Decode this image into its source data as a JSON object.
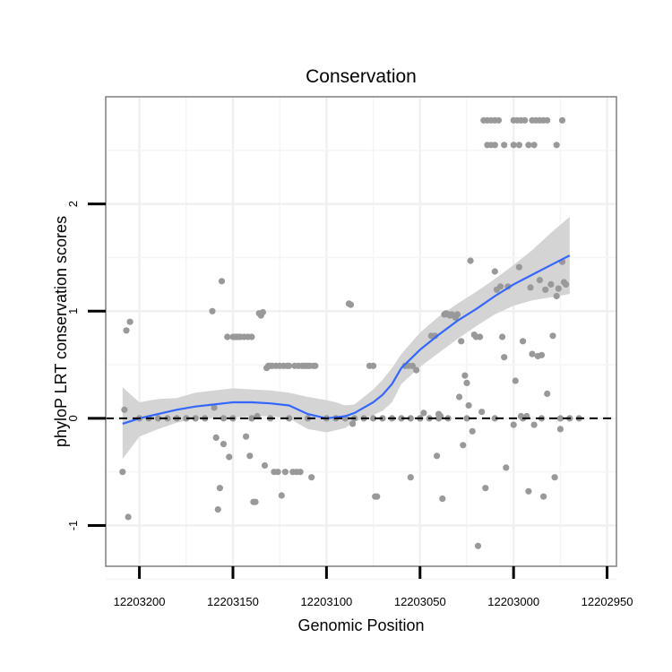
{
  "chart_data": {
    "type": "scatter",
    "title": "Conservation",
    "xlabel": "Genomic Position",
    "ylabel": "phyloP LRT conservation scores",
    "x_reversed": true,
    "xlim": [
      12203218,
      12202945
    ],
    "ylim": [
      -1.38,
      3.0
    ],
    "x_ticks": [
      {
        "value": 12203200,
        "label": "12203200"
      },
      {
        "value": 12203150,
        "label": "12203150"
      },
      {
        "value": 12203100,
        "label": "12203100"
      },
      {
        "value": 12203050,
        "label": "12203050"
      },
      {
        "value": 12203000,
        "label": "12203000"
      },
      {
        "value": 12202950,
        "label": "12202950"
      }
    ],
    "y_ticks": [
      {
        "value": -1,
        "label": "-1"
      },
      {
        "value": 0,
        "label": "0"
      },
      {
        "value": 1,
        "label": "1"
      },
      {
        "value": 2,
        "label": "2"
      }
    ],
    "reference_line": {
      "y": 0,
      "style": "dashed"
    },
    "point_color": "#999999",
    "smooth_color": "#3366ff",
    "band_color": "#d4d4d4",
    "points": [
      [
        12203209,
        -0.5
      ],
      [
        12203208,
        0.08
      ],
      [
        12203207,
        0.82
      ],
      [
        12203206,
        -0.92
      ],
      [
        12203205,
        0.9
      ],
      [
        12203200,
        0.0
      ],
      [
        12203195,
        0.0
      ],
      [
        12203190,
        0.0
      ],
      [
        12203185,
        0.0
      ],
      [
        12203180,
        0.0
      ],
      [
        12203175,
        0.0
      ],
      [
        12203170,
        0.0
      ],
      [
        12203165,
        0.0
      ],
      [
        12203155,
        0.0
      ],
      [
        12203150,
        0.0
      ],
      [
        12203140,
        0.0
      ],
      [
        12203130,
        0.0
      ],
      [
        12203120,
        0.0
      ],
      [
        12203110,
        0.0
      ],
      [
        12203100,
        0.0
      ],
      [
        12203095,
        0.0
      ],
      [
        12203090,
        0.0
      ],
      [
        12203085,
        0.0
      ],
      [
        12203080,
        0.0
      ],
      [
        12203075,
        0.0
      ],
      [
        12203070,
        0.0
      ],
      [
        12203065,
        0.0
      ],
      [
        12203060,
        0.0
      ],
      [
        12203055,
        0.0
      ],
      [
        12203050,
        0.0
      ],
      [
        12203045,
        0.0
      ],
      [
        12203040,
        0.0
      ],
      [
        12203035,
        0.0
      ],
      [
        12203025,
        0.0
      ],
      [
        12203010,
        0.0
      ],
      [
        12202995,
        0.0
      ],
      [
        12202985,
        0.0
      ],
      [
        12202975,
        0.0
      ],
      [
        12202970,
        0.0
      ],
      [
        12202965,
        0.0
      ],
      [
        12203161,
        1.0
      ],
      [
        12203160,
        0.1
      ],
      [
        12203159,
        -0.18
      ],
      [
        12203158,
        -0.85
      ],
      [
        12203157,
        -0.65
      ],
      [
        12203156,
        1.28
      ],
      [
        12203155,
        -0.24
      ],
      [
        12203153,
        0.76
      ],
      [
        12203152,
        -0.36
      ],
      [
        12203150,
        0.76
      ],
      [
        12203149,
        0.76
      ],
      [
        12203148,
        0.76
      ],
      [
        12203147,
        0.76
      ],
      [
        12203146,
        0.76
      ],
      [
        12203144,
        0.76
      ],
      [
        12203143,
        -0.17
      ],
      [
        12203142,
        0.76
      ],
      [
        12203141,
        -0.35
      ],
      [
        12203140,
        0.76
      ],
      [
        12203139,
        -0.78
      ],
      [
        12203138,
        -0.78
      ],
      [
        12203137,
        0.02
      ],
      [
        12203136,
        0.98
      ],
      [
        12203135,
        0.96
      ],
      [
        12203134,
        0.99
      ],
      [
        12203133,
        -0.44
      ],
      [
        12203132,
        0.47
      ],
      [
        12203131,
        0.49
      ],
      [
        12203130,
        0.49
      ],
      [
        12203129,
        0.49
      ],
      [
        12203128,
        -0.5
      ],
      [
        12203127,
        0.49
      ],
      [
        12203126,
        -0.5
      ],
      [
        12203125,
        0.49
      ],
      [
        12203124,
        -0.72
      ],
      [
        12203123,
        0.49
      ],
      [
        12203122,
        -0.5
      ],
      [
        12203121,
        0.49
      ],
      [
        12203120,
        0.49
      ],
      [
        12203118,
        -0.5
      ],
      [
        12203117,
        0.49
      ],
      [
        12203116,
        -0.5
      ],
      [
        12203115,
        0.49
      ],
      [
        12203114,
        -0.5
      ],
      [
        12203113,
        0.49
      ],
      [
        12203112,
        0.49
      ],
      [
        12203111,
        0.49
      ],
      [
        12203110,
        0.49
      ],
      [
        12203109,
        0.49
      ],
      [
        12203108,
        -0.55
      ],
      [
        12203107,
        0.49
      ],
      [
        12203106,
        0.49
      ],
      [
        12203088,
        1.07
      ],
      [
        12203087,
        1.06
      ],
      [
        12203086,
        -0.05
      ],
      [
        12203077,
        0.49
      ],
      [
        12203075,
        0.49
      ],
      [
        12203074,
        -0.73
      ],
      [
        12203073,
        -0.73
      ],
      [
        12203058,
        0.49
      ],
      [
        12203056,
        0.49
      ],
      [
        12203055,
        -0.55
      ],
      [
        12203054,
        0.49
      ],
      [
        12203052,
        0.45
      ],
      [
        12203050,
        0.0
      ],
      [
        12203048,
        0.05
      ],
      [
        12203044,
        0.77
      ],
      [
        12203042,
        0.77
      ],
      [
        12203041,
        -0.35
      ],
      [
        12203040,
        0.04
      ],
      [
        12203039,
        0.02
      ],
      [
        12203038,
        -0.75
      ],
      [
        12203037,
        0.97
      ],
      [
        12203036,
        0.98
      ],
      [
        12203035,
        0.97
      ],
      [
        12203034,
        0.96
      ],
      [
        12203033,
        0.97
      ],
      [
        12203032,
        0.96
      ],
      [
        12203031,
        0.94
      ],
      [
        12203030,
        0.97
      ],
      [
        12203029,
        0.2
      ],
      [
        12203028,
        0.72
      ],
      [
        12203027,
        -0.25
      ],
      [
        12203026,
        0.4
      ],
      [
        12203025,
        0.33
      ],
      [
        12203024,
        0.12
      ],
      [
        12203023,
        1.47
      ],
      [
        12203022,
        -0.12
      ],
      [
        12203021,
        0.78
      ],
      [
        12203020,
        0.76
      ],
      [
        12203019,
        -1.19
      ],
      [
        12203018,
        0.76
      ],
      [
        12203017,
        0.06
      ],
      [
        12203015,
        -0.65
      ],
      [
        12203010,
        1.37
      ],
      [
        12203009,
        1.2
      ],
      [
        12203007,
        1.23
      ],
      [
        12203006,
        0.76
      ],
      [
        12203005,
        0.57
      ],
      [
        12203004,
        -0.46
      ],
      [
        12203003,
        1.23
      ],
      [
        12203000,
        -0.06
      ],
      [
        12202999,
        0.35
      ],
      [
        12202997,
        1.41
      ],
      [
        12202996,
        0.02
      ],
      [
        12202995,
        0.72
      ],
      [
        12202993,
        0.02
      ],
      [
        12202992,
        -0.68
      ],
      [
        12202991,
        1.22
      ],
      [
        12202990,
        0.6
      ],
      [
        12202989,
        -0.06
      ],
      [
        12202987,
        0.58
      ],
      [
        12202986,
        1.29
      ],
      [
        12202985,
        0.59
      ],
      [
        12202984,
        -0.73
      ],
      [
        12202983,
        1.2
      ],
      [
        12202982,
        0.23
      ],
      [
        12202980,
        1.25
      ],
      [
        12202979,
        0.77
      ],
      [
        12202978,
        -0.55
      ],
      [
        12202977,
        1.14
      ],
      [
        12202976,
        1.21
      ],
      [
        12202975,
        -0.1
      ],
      [
        12202974,
        1.46
      ],
      [
        12202973,
        1.27
      ],
      [
        12202972,
        1.25
      ],
      [
        12203016,
        2.78
      ],
      [
        12203014,
        2.78
      ],
      [
        12203012,
        2.78
      ],
      [
        12203010,
        2.78
      ],
      [
        12203008,
        2.78
      ],
      [
        12203000,
        2.78
      ],
      [
        12202998,
        2.78
      ],
      [
        12202996,
        2.78
      ],
      [
        12202994,
        2.78
      ],
      [
        12202990,
        2.78
      ],
      [
        12202988,
        2.78
      ],
      [
        12202986,
        2.78
      ],
      [
        12202984,
        2.78
      ],
      [
        12202982,
        2.78
      ],
      [
        12202974,
        2.78
      ],
      [
        12203014,
        2.55
      ],
      [
        12203012,
        2.55
      ],
      [
        12203010,
        2.55
      ],
      [
        12203005,
        2.55
      ],
      [
        12203000,
        2.55
      ],
      [
        12202997,
        2.55
      ],
      [
        12202992,
        2.55
      ],
      [
        12202989,
        2.55
      ],
      [
        12202977,
        2.55
      ]
    ],
    "smooth_line": {
      "x": [
        12203209,
        12203200,
        12203190,
        12203180,
        12203170,
        12203160,
        12203150,
        12203140,
        12203130,
        12203120,
        12203110,
        12203100,
        12203095,
        12203090,
        12203085,
        12203080,
        12203075,
        12203070,
        12203065,
        12203060,
        12203050,
        12203040,
        12203030,
        12203020,
        12203010,
        12203000,
        12202990,
        12202980,
        12202970
      ],
      "y": [
        -0.05,
        0.0,
        0.04,
        0.08,
        0.11,
        0.13,
        0.15,
        0.15,
        0.14,
        0.12,
        0.04,
        0.0,
        0.01,
        0.02,
        0.05,
        0.1,
        0.15,
        0.22,
        0.32,
        0.47,
        0.64,
        0.78,
        0.91,
        1.02,
        1.14,
        1.25,
        1.34,
        1.43,
        1.52
      ],
      "band_upper": [
        0.29,
        0.15,
        0.18,
        0.19,
        0.24,
        0.26,
        0.28,
        0.27,
        0.26,
        0.24,
        0.2,
        0.17,
        0.15,
        0.12,
        0.13,
        0.2,
        0.27,
        0.36,
        0.47,
        0.6,
        0.8,
        0.95,
        1.07,
        1.18,
        1.3,
        1.43,
        1.57,
        1.73,
        1.88
      ],
      "band_lower": [
        -0.38,
        -0.17,
        -0.1,
        -0.04,
        0.0,
        0.0,
        0.01,
        0.02,
        0.02,
        0.0,
        -0.1,
        -0.13,
        -0.11,
        -0.09,
        -0.03,
        0.0,
        0.03,
        0.07,
        0.15,
        0.32,
        0.48,
        0.61,
        0.74,
        0.86,
        0.97,
        1.05,
        1.1,
        1.13,
        1.16
      ]
    }
  }
}
